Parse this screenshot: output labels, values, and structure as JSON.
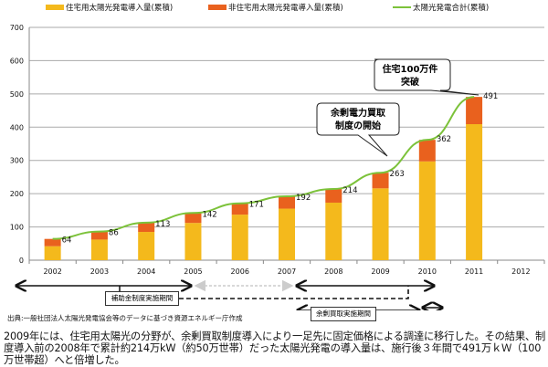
{
  "chart_data": {
    "type": "bar",
    "stacked": true,
    "categories": [
      "2002",
      "2003",
      "2004",
      "2005",
      "2006",
      "2007",
      "2008",
      "2009",
      "2010",
      "2011",
      "2012"
    ],
    "series": [
      {
        "name": "住宅用太陽光発電導入量(累積)",
        "color": "#f4b91c",
        "values": [
          42,
          62,
          85,
          112,
          137,
          155,
          173,
          216,
          297,
          409,
          null
        ]
      },
      {
        "name": "非住宅用太陽光発電導入量(累積)",
        "color": "#e9611e",
        "values": [
          22,
          24,
          28,
          30,
          34,
          37,
          41,
          47,
          65,
          82,
          null
        ]
      },
      {
        "name": "太陽光発電合計(累積)",
        "type": "line",
        "color": "#7cc23a",
        "values": [
          64,
          86,
          113,
          142,
          171,
          192,
          214,
          263,
          362,
          491,
          null
        ]
      }
    ],
    "data_labels": [
      "64",
      "86",
      "113",
      "142",
      "171",
      "192",
      "214",
      "263",
      "362",
      "491"
    ],
    "yticks": [
      "0",
      "100",
      "200",
      "300",
      "400",
      "500",
      "600",
      "700"
    ],
    "ylim": [
      0,
      700
    ],
    "grid": true,
    "legend": "top",
    "annotations": [
      {
        "text_line1": "住宅100万件",
        "text_line2": "突破"
      },
      {
        "text_line1": "余剰電力買取",
        "text_line2": "制度の開始"
      }
    ]
  },
  "periods": {
    "subsidy": "補助金制度実施期間",
    "surplus": "余剰買取実施期間"
  },
  "source": "出典:一般社団法人太陽光発電協会等のデータに基づき資源エネルギー庁作成",
  "paragraph": "2009年には、住宅用太陽光の分野が、余剰買取制度導入により一足先に固定価格による調達に移行した。その結果、制度導入前の2008年で累計約214万kW（約50万世帯）だった太陽光発電の導入量は、施行後３年間で491万ｋＷ（100万世帯超）へと倍増した。"
}
